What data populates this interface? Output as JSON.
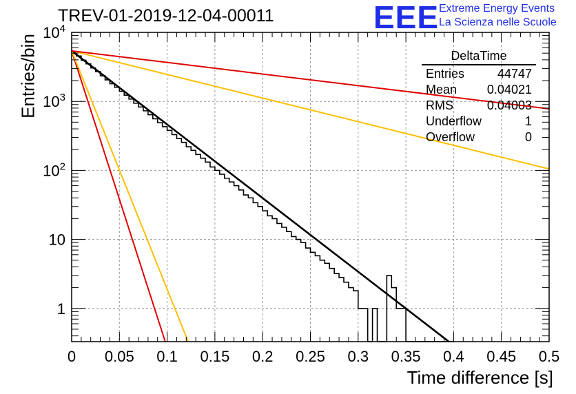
{
  "title": "TREV-01-2019-12-04-00011",
  "logo": {
    "mark": "EEE",
    "line1": "Extreme Energy Events",
    "line2": "La Scienza nelle Scuole"
  },
  "colors": {
    "red": "#e00000",
    "yellow": "#ffc000",
    "black": "#000000",
    "blue": "#1f2ee6",
    "grid": "#9a9a9a"
  },
  "stats": {
    "title": "DeltaTime",
    "rows": [
      {
        "label": "Entries",
        "value": "44747"
      },
      {
        "label": "Mean",
        "value": "0.04021"
      },
      {
        "label": "RMS",
        "value": "0.04003"
      },
      {
        "label": "Underflow",
        "value": "1"
      },
      {
        "label": "Overflow",
        "value": "0"
      }
    ]
  },
  "chart_data": {
    "type": "bar",
    "xlabel": "Time difference [s]",
    "ylabel": "Entries/bin",
    "xlim": [
      0,
      0.5
    ],
    "ylim": [
      0.33,
      10000
    ],
    "y_scale": "log",
    "grid": true,
    "x_ticks": [
      "0",
      "0.05",
      "0.1",
      "0.15",
      "0.2",
      "0.25",
      "0.3",
      "0.35",
      "0.4",
      "0.45",
      "0.5"
    ],
    "x_tick_values": [
      0,
      0.05,
      0.1,
      0.15,
      0.2,
      0.25,
      0.3,
      0.35,
      0.4,
      0.45,
      0.5
    ],
    "y_ticks": [
      {
        "value": 1,
        "label": "1"
      },
      {
        "value": 10,
        "label": "10"
      },
      {
        "value": 100,
        "label": "10^2"
      },
      {
        "value": 1000,
        "label": "10^3"
      },
      {
        "value": 10000,
        "label": "10^4"
      }
    ],
    "histogram": {
      "bin_width": 0.005,
      "values": [
        5100,
        4550,
        3950,
        3500,
        3050,
        2700,
        2350,
        2050,
        1800,
        1600,
        1400,
        1230,
        1080,
        940,
        830,
        730,
        640,
        560,
        490,
        430,
        380,
        330,
        290,
        255,
        220,
        195,
        170,
        150,
        132,
        112,
        100,
        88,
        77,
        68,
        60,
        52,
        44,
        40,
        34,
        30,
        26,
        22,
        20,
        17,
        15,
        13,
        11,
        10,
        9,
        7.5,
        6.5,
        5.8,
        5,
        4.5,
        3.8,
        3.2,
        2.8,
        2.4,
        2.0,
        1.8,
        1,
        1,
        0,
        1,
        0,
        0,
        3,
        2,
        1,
        1,
        0,
        0,
        0,
        0,
        0,
        0,
        0,
        0,
        0,
        0
      ]
    },
    "series": [
      {
        "color": "#000000",
        "x": [
          0,
          0.395
        ],
        "y": [
          5400,
          0.33
        ]
      },
      {
        "color": "#e00000",
        "x": [
          0,
          0.098
        ],
        "y": [
          5400,
          0.33
        ]
      },
      {
        "color": "#ffc000",
        "x": [
          0,
          0.122
        ],
        "y": [
          5400,
          0.33
        ]
      },
      {
        "color": "#ffc000",
        "x": [
          0,
          0.5
        ],
        "y": [
          5400,
          105
        ]
      },
      {
        "color": "#e00000",
        "x": [
          0,
          0.5
        ],
        "y": [
          5400,
          780
        ]
      }
    ]
  }
}
